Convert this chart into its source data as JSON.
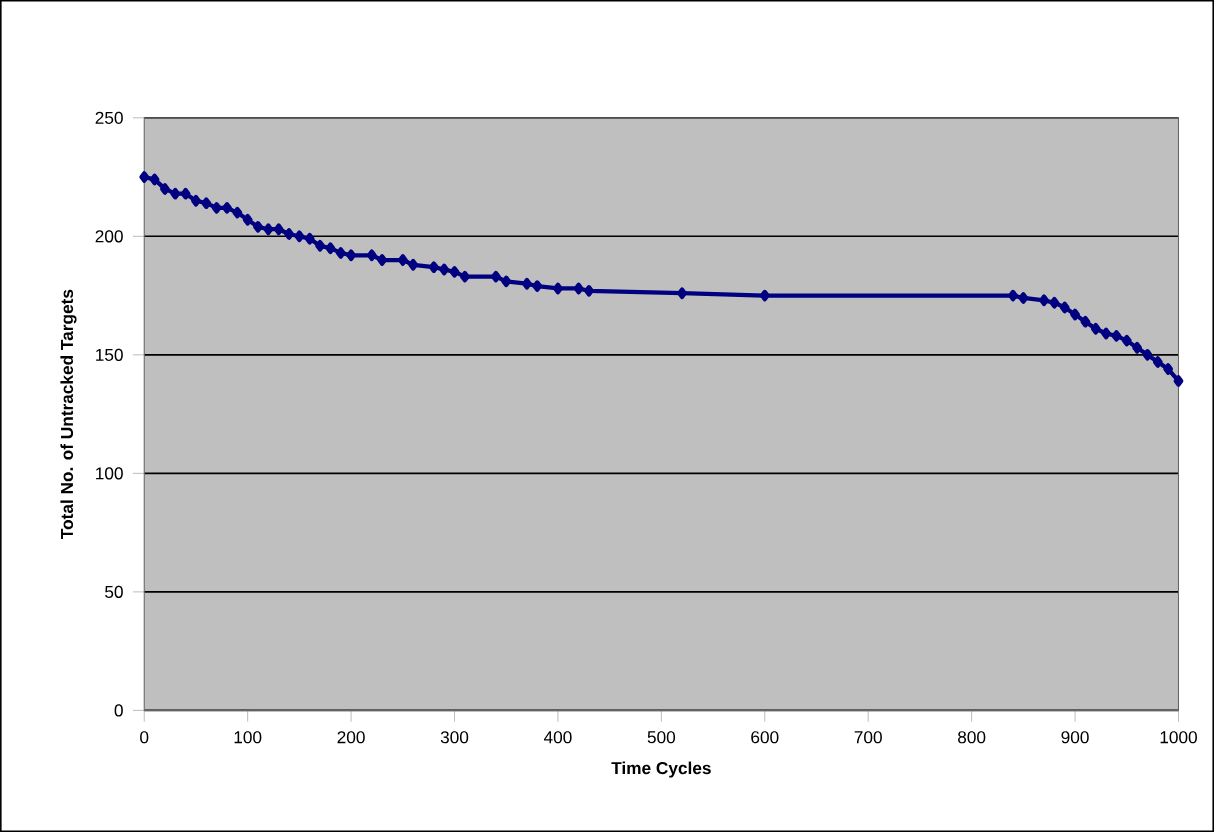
{
  "chart_data": {
    "type": "line",
    "xlabel": "Time Cycles",
    "ylabel": "Total No. of Untracked Targets",
    "xlim": [
      0,
      1000
    ],
    "xticks": [
      0,
      100,
      200,
      300,
      400,
      500,
      600,
      700,
      800,
      900,
      1000
    ],
    "ylim": [
      0,
      250
    ],
    "yticks": [
      0,
      50,
      100,
      150,
      200,
      250
    ],
    "grid": "y",
    "marker": "diamond",
    "series": [
      {
        "color": "#000080",
        "x": [
          0,
          10,
          20,
          30,
          40,
          50,
          60,
          70,
          80,
          90,
          100,
          110,
          120,
          130,
          140,
          150,
          160,
          170,
          180,
          190,
          200,
          220,
          230,
          250,
          260,
          280,
          290,
          300,
          310,
          340,
          350,
          370,
          380,
          400,
          420,
          430,
          520,
          600,
          840,
          850,
          870,
          880,
          890,
          900,
          910,
          920,
          930,
          940,
          950,
          960,
          970,
          980,
          990,
          1000
        ],
        "values": [
          225,
          224,
          220,
          218,
          218,
          215,
          214,
          212,
          212,
          210,
          207,
          204,
          203,
          203,
          201,
          200,
          199,
          196,
          195,
          193,
          192,
          192,
          190,
          190,
          188,
          187,
          186,
          185,
          183,
          183,
          181,
          180,
          179,
          178,
          178,
          177,
          176,
          175,
          175,
          174,
          173,
          172,
          170,
          167,
          164,
          161,
          159,
          158,
          156,
          153,
          150,
          147,
          144,
          139
        ]
      }
    ]
  }
}
